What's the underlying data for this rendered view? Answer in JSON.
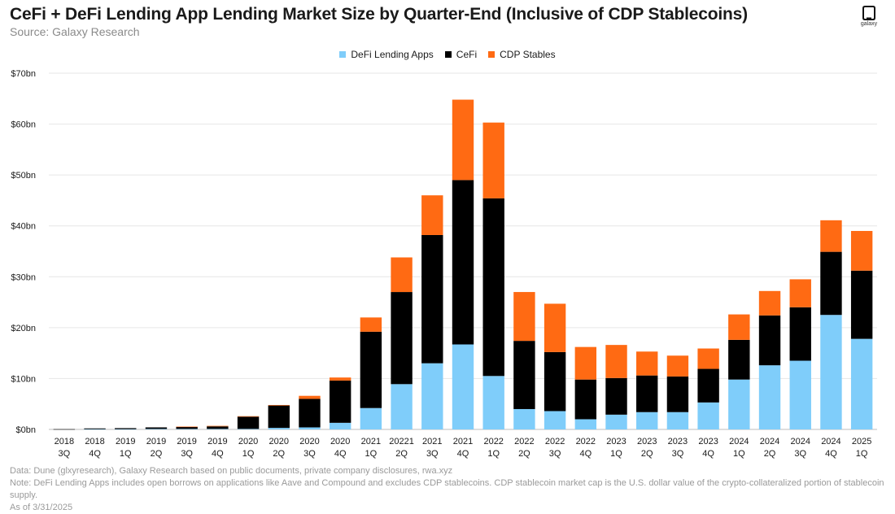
{
  "header": {
    "title": "CeFi + DeFi Lending App Lending Market Size by Quarter-End (Inclusive of CDP Stablecoins)",
    "subtitle": "Source: Galaxy Research",
    "logo_text": "galaxy"
  },
  "colors": {
    "defi": "#7fcdfa",
    "cefi": "#000000",
    "cdp": "#ff6a13",
    "grid": "#e6e6e6"
  },
  "chart_data": {
    "type": "bar",
    "stacked": true,
    "title": "CeFi + DeFi Lending App Lending Market Size by Quarter-End (Inclusive of CDP Stablecoins)",
    "xlabel": "",
    "ylabel": "",
    "ylim": [
      0,
      70
    ],
    "yticks": [
      0,
      10,
      20,
      30,
      40,
      50,
      60,
      70
    ],
    "ytick_labels": [
      "$0bn",
      "$10bn",
      "$20bn",
      "$30bn",
      "$40bn",
      "$50bn",
      "$60bn",
      "$70bn"
    ],
    "legend_position": "top-center",
    "categories": [
      [
        "2018",
        "3Q"
      ],
      [
        "2018",
        "4Q"
      ],
      [
        "2019",
        "1Q"
      ],
      [
        "2019",
        "2Q"
      ],
      [
        "2019",
        "3Q"
      ],
      [
        "2019",
        "4Q"
      ],
      [
        "2020",
        "1Q"
      ],
      [
        "2020",
        "2Q"
      ],
      [
        "2020",
        "3Q"
      ],
      [
        "2020",
        "4Q"
      ],
      [
        "2021",
        "1Q"
      ],
      [
        "20221",
        "2Q"
      ],
      [
        "2021",
        "3Q"
      ],
      [
        "2021",
        "4Q"
      ],
      [
        "2022",
        "1Q"
      ],
      [
        "2022",
        "2Q"
      ],
      [
        "2022",
        "3Q"
      ],
      [
        "2022",
        "4Q"
      ],
      [
        "2023",
        "1Q"
      ],
      [
        "2023",
        "2Q"
      ],
      [
        "2023",
        "3Q"
      ],
      [
        "2023",
        "4Q"
      ],
      [
        "2024",
        "1Q"
      ],
      [
        "2024",
        "2Q"
      ],
      [
        "2024",
        "3Q"
      ],
      [
        "2024",
        "4Q"
      ],
      [
        "2025",
        "1Q"
      ]
    ],
    "series": [
      {
        "name": "DeFi Lending Apps",
        "color_key": "defi",
        "values": [
          0,
          0.05,
          0.05,
          0.1,
          0.1,
          0.1,
          0.1,
          0.3,
          0.4,
          1.3,
          4.2,
          8.9,
          13.0,
          16.7,
          10.5,
          4.0,
          3.6,
          2.0,
          2.9,
          3.4,
          3.4,
          5.3,
          9.8,
          12.6,
          13.5,
          22.5,
          17.8
        ]
      },
      {
        "name": "CeFi",
        "color_key": "cefi",
        "values": [
          0.05,
          0.15,
          0.2,
          0.3,
          0.4,
          0.5,
          2.4,
          4.4,
          5.6,
          8.3,
          15.0,
          18.1,
          25.2,
          32.3,
          34.9,
          13.4,
          11.6,
          7.8,
          7.2,
          7.2,
          7.0,
          6.6,
          7.8,
          9.8,
          10.5,
          12.4,
          13.4
        ]
      },
      {
        "name": "CDP Stables",
        "color_key": "cdp",
        "values": [
          0,
          0,
          0,
          0,
          0.05,
          0.1,
          0.1,
          0.1,
          0.6,
          0.6,
          2.8,
          6.8,
          7.8,
          15.8,
          14.9,
          9.6,
          9.5,
          6.4,
          6.5,
          4.7,
          4.1,
          4.0,
          5.0,
          4.8,
          5.5,
          6.2,
          7.8
        ]
      }
    ]
  },
  "footnotes": {
    "line1": "Data: Dune (glxyresearch), Galaxy Research based on public documents, private company disclosures, rwa.xyz",
    "line2": "Note: DeFi Lending Apps includes open borrows on applications like Aave and Compound and excludes CDP stablecoins. CDP stablecoin market cap is the U.S. dollar value of the crypto-collateralized portion of stablecoin supply.",
    "line3": "As of 3/31/2025"
  }
}
